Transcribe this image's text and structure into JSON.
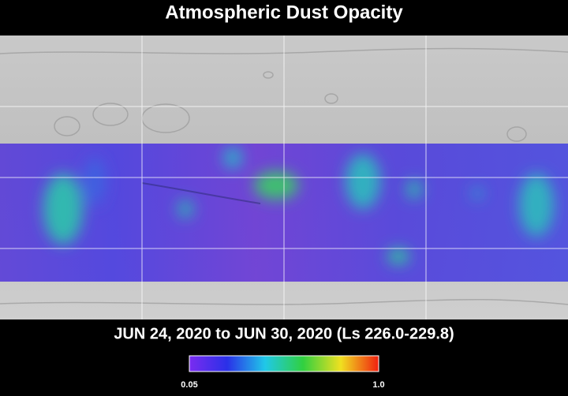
{
  "title": "Atmospheric Dust Opacity",
  "subtitle": "JUN 24, 2020 to JUN 30, 2020 (Ls 226.0-229.8)",
  "colorbar": {
    "min_label": "0.05",
    "max_label": "1.0"
  }
}
